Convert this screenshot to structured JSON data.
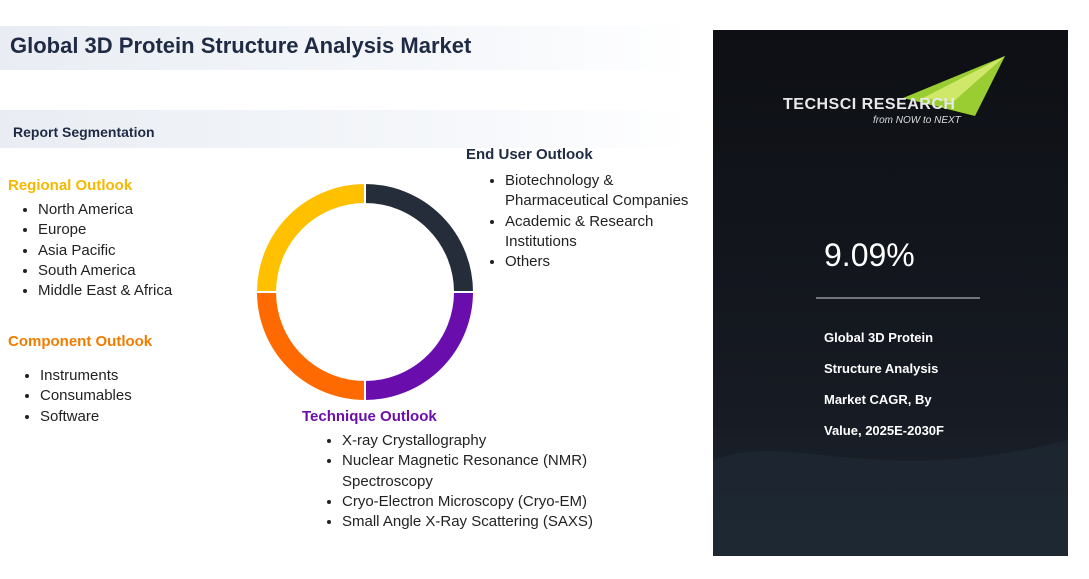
{
  "header": {
    "title": "Global 3D Protein Structure Analysis Market"
  },
  "segmentation": {
    "title": "Report Segmentation",
    "regional": {
      "title": "Regional Outlook",
      "items": [
        "North America",
        "Europe",
        "Asia Pacific",
        "South America",
        "Middle East & Africa"
      ]
    },
    "component": {
      "title": "Component Outlook",
      "items": [
        "Instruments",
        "Consumables",
        "Software"
      ]
    },
    "end_user": {
      "title": "End User Outlook",
      "items": [
        "Biotechnology & Pharmaceutical Companies",
        "Academic & Research Institutions",
        "Others"
      ]
    },
    "technique": {
      "title": "Technique Outlook",
      "items": [
        "X-ray Crystallography",
        "Nuclear Magnetic Resonance (NMR) Spectroscopy",
        "Cryo-Electron Microscopy (Cryo-EM)",
        "Small Angle X-Ray Scattering (SAXS)"
      ]
    }
  },
  "panel": {
    "logo": "TECHSCI RESEARCH",
    "tagline": "from NOW to NEXT",
    "cagr": "9.09%",
    "description": [
      "Global 3D Protein",
      "Structure Analysis",
      "Market CAGR, By",
      "Value, 2025E-2030F"
    ]
  }
}
